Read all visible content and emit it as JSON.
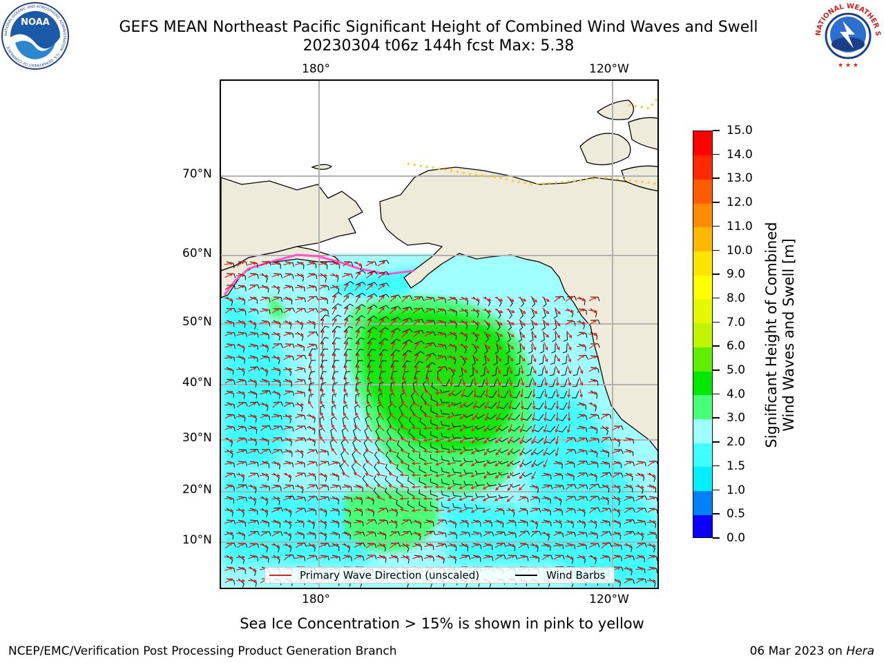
{
  "header": {
    "title_line1": "GEFS MEAN Northeast Pacific Significant Height of Combined Wind Waves and Swell",
    "title_line2": "20230304 t06z 144h fcst   Max: 5.38"
  },
  "logos": {
    "left": {
      "icon": "noaa-logo-icon",
      "text": "NOAA",
      "ring_text": "NATIONAL OCEANIC AND ATMOSPHERIC ADMINISTRATION · U.S. DEPARTMENT OF COMMERCE"
    },
    "right": {
      "icon": "nws-logo-icon",
      "ring_text": "NATIONAL WEATHER SERVICE"
    }
  },
  "map": {
    "lon_labels_top": [
      "180°",
      "120°W"
    ],
    "lon_labels_bottom": [
      "180°",
      "120°W"
    ],
    "lat_labels": [
      "70°N",
      "60°N",
      "50°N",
      "40°N",
      "30°N",
      "20°N",
      "10°N"
    ],
    "colors": {
      "land": "#efebdb",
      "coast": "#000000",
      "grid": "#b0b0b0",
      "wind_barb": "#000000",
      "wave_arrow": "#e8201c"
    }
  },
  "legend": {
    "items": [
      {
        "label": "Primary Wave Direction (unscaled)",
        "color": "#e8201c"
      },
      {
        "label": "Wind Barbs",
        "color": "#000000"
      }
    ]
  },
  "colorbar": {
    "title": "Significant Height of Combined Wind Waves and Swell [m]",
    "title_line1": "Significant Height of Combined",
    "title_line2": "Wind Waves and Swell [m]",
    "ticks": [
      "0.0",
      "0.5",
      "1.0",
      "1.5",
      "2.0",
      "3.0",
      "4.0",
      "5.0",
      "6.0",
      "7.0",
      "8.0",
      "9.0",
      "10.0",
      "11.0",
      "12.0",
      "13.0",
      "14.0",
      "15.0"
    ],
    "colors": [
      "#0a00ff",
      "#0080ff",
      "#00f0ff",
      "#40ffff",
      "#a0ffff",
      "#48ff78",
      "#00e800",
      "#60ee00",
      "#c0f400",
      "#e4f800",
      "#ffff00",
      "#ffe400",
      "#ffb800",
      "#ff8c00",
      "#ff5c00",
      "#ff2800",
      "#ff0000"
    ]
  },
  "caption": "Sea Ice Concentration > 15% is shown in pink to yellow",
  "footer": {
    "left": "NCEP/EMC/Verification Post Processing Product Generation Branch",
    "date": "06 Mar 2023 on",
    "host": "Hera"
  }
}
